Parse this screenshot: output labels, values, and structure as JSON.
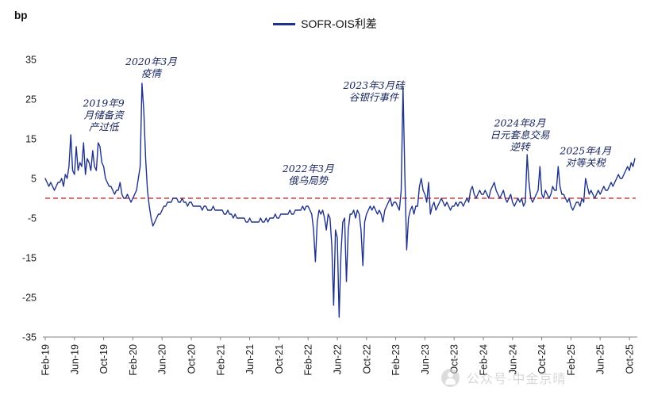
{
  "legend": {
    "series_label": "SOFR-OIS利差"
  },
  "watermark": {
    "text": "公众号·中金京晴",
    "icon": "person-in-circle"
  },
  "chart_data": {
    "type": "line",
    "title": "",
    "xlabel": "",
    "ylabel": "bp",
    "ylim": [
      -35,
      35
    ],
    "grid": false,
    "legend_position": "top-center",
    "y_ticks": [
      35,
      25,
      15,
      5,
      -5,
      -15,
      -25,
      -35
    ],
    "x_tick_labels": [
      "Feb-19",
      "Jun-19",
      "Oct-19",
      "Feb-20",
      "Jun-20",
      "Oct-20",
      "Feb-21",
      "Jun-21",
      "Oct-21",
      "Feb-22",
      "Jun-22",
      "Oct-22",
      "Feb-23",
      "Jun-23",
      "Oct-23",
      "Feb-24",
      "Jun-24",
      "Oct-24",
      "Feb-25",
      "Jun-25",
      "Oct-25"
    ],
    "x_tick_month_index": [
      0,
      4,
      8,
      12,
      16,
      20,
      24,
      28,
      32,
      36,
      40,
      44,
      48,
      52,
      56,
      60,
      64,
      68,
      72,
      76,
      80
    ],
    "zero_line": {
      "y": 0,
      "color": "#e31212",
      "style": "dashed"
    },
    "series": [
      {
        "name": "SOFR-OIS利差",
        "color": "#20338c",
        "samples_per_month": 4,
        "start_label": "Feb-19",
        "values": [
          5,
          4,
          3,
          4,
          3,
          2,
          3,
          4,
          4,
          5,
          3,
          6,
          5,
          8,
          16,
          7,
          6,
          13,
          7,
          9,
          8,
          14,
          6,
          10,
          9,
          7,
          12,
          8,
          7,
          14,
          13,
          9,
          8,
          5,
          4,
          3,
          3,
          2,
          1,
          2,
          2,
          4,
          1,
          0,
          0,
          1,
          0,
          -1,
          0,
          1,
          2,
          5,
          8,
          29,
          22,
          10,
          2,
          -2,
          -5,
          -7,
          -6,
          -5,
          -4,
          -4,
          -3,
          -2,
          -2,
          -1,
          -1,
          -1,
          0,
          0,
          0,
          -1,
          -1,
          0,
          -1,
          -1,
          -2,
          -1,
          -1,
          -2,
          -2,
          -2,
          -2,
          -2,
          -3,
          -2,
          -2,
          -3,
          -3,
          -3,
          -2,
          -3,
          -3,
          -3,
          -3,
          -3,
          -4,
          -4,
          -3,
          -4,
          -4,
          -5,
          -4,
          -5,
          -5,
          -5,
          -5,
          -5,
          -6,
          -6,
          -5,
          -6,
          -6,
          -6,
          -6,
          -6,
          -5,
          -6,
          -6,
          -5,
          -6,
          -5,
          -5,
          -5,
          -4,
          -5,
          -5,
          -4,
          -4,
          -4,
          -4,
          -4,
          -3,
          -4,
          -4,
          -3,
          -3,
          -3,
          -3,
          -2,
          -3,
          -2,
          -2,
          -3,
          -4,
          -8,
          -16,
          -6,
          -3,
          -4,
          -3,
          -5,
          -8,
          -4,
          -5,
          -12,
          -27,
          -8,
          -10,
          -30,
          -14,
          -6,
          -5,
          -21,
          -8,
          -4,
          -4,
          -3,
          -5,
          -3,
          -4,
          -8,
          -17,
          -6,
          -4,
          -3,
          -2,
          -3,
          -2,
          -3,
          -4,
          -3,
          -4,
          -6,
          -3,
          -2,
          -1,
          0,
          -2,
          -1,
          -1,
          -2,
          -3,
          2,
          28,
          6,
          -13,
          -5,
          -3,
          -2,
          -4,
          -2,
          -2,
          3,
          5,
          2,
          1,
          -1,
          4,
          -4,
          -2,
          -1,
          -3,
          -2,
          -1,
          0,
          -1,
          -2,
          -1,
          -2,
          -3,
          -2,
          -2,
          -1,
          -2,
          -1,
          -1,
          -2,
          -1,
          0,
          -1,
          2,
          3,
          1,
          0,
          1,
          2,
          1,
          1,
          2,
          1,
          0,
          2,
          3,
          4,
          2,
          1,
          0,
          1,
          2,
          0,
          -1,
          0,
          1,
          -1,
          -2,
          -1,
          0,
          -1,
          0,
          -2,
          -1,
          11,
          4,
          0,
          -1,
          0,
          1,
          2,
          8,
          1,
          0,
          2,
          1,
          0,
          1,
          3,
          2,
          2,
          8,
          3,
          1,
          1,
          0,
          -1,
          0,
          -2,
          -3,
          -2,
          -1,
          -1,
          -2,
          0,
          -1,
          5,
          3,
          1,
          2,
          1,
          0,
          1,
          2,
          1,
          2,
          3,
          2,
          2,
          3,
          4,
          3,
          4,
          5,
          6,
          5,
          5,
          6,
          7,
          8,
          7,
          9,
          8,
          10
        ]
      }
    ],
    "annotations": [
      {
        "lines": [
          "2019年9",
          "月储备资",
          "产过低"
        ],
        "month_index": 8,
        "bp": 21
      },
      {
        "lines": [
          "2020年3月",
          "疫情"
        ],
        "month_index": 14.5,
        "bp": 33
      },
      {
        "lines": [
          "2022年3月",
          "俄乌局势"
        ],
        "month_index": 36,
        "bp": 6
      },
      {
        "lines": [
          "2023年3月硅",
          "谷银行事件"
        ],
        "month_index": 45,
        "bp": 27
      },
      {
        "lines": [
          "2024年8月",
          "日元套息交易",
          "逆转"
        ],
        "month_index": 65,
        "bp": 16
      },
      {
        "lines": [
          "2025年4月",
          "对等关税"
        ],
        "month_index": 74,
        "bp": 10.5
      }
    ]
  }
}
